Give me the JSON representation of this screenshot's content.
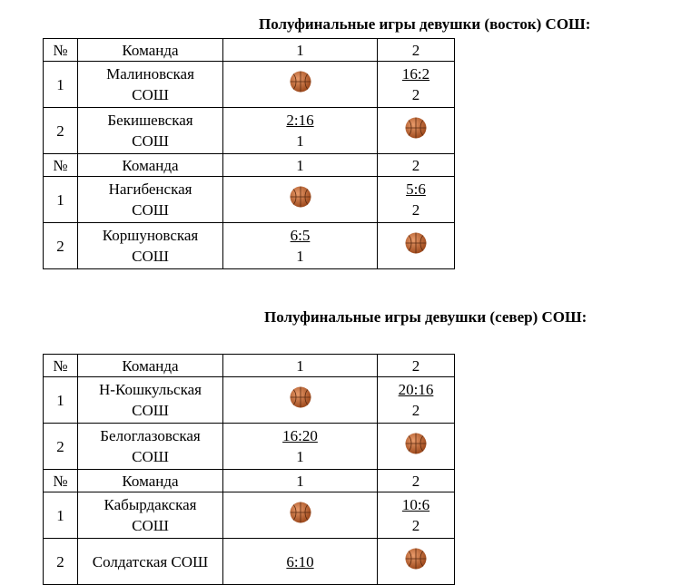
{
  "sections": [
    {
      "title": "Полуфинальные игры девушки (восток) СОШ:",
      "table": {
        "rows": [
          [
            "№",
            "Команда",
            "1",
            "2"
          ],
          [
            "1",
            "Малиновская\nСОШ",
            null,
            {
              "score": "16:2",
              "place": "2"
            }
          ],
          [
            "2",
            "Бекишевская\nСОШ",
            {
              "score": "2:16",
              "place": "1"
            },
            null
          ],
          [
            "№",
            "Команда",
            "1",
            "2"
          ],
          [
            "1",
            "Нагибенская\nСОШ",
            null,
            {
              "score": "5:6",
              "place": "2"
            }
          ],
          [
            "2",
            "Коршуновская\nСОШ",
            {
              "score": "6:5",
              "place": "1"
            },
            null
          ]
        ]
      }
    },
    {
      "title": "Полуфинальные игры девушки (север) СОШ:",
      "table": {
        "rows": [
          [
            "№",
            "Команда",
            "1",
            "2"
          ],
          [
            "1",
            "Н-Кошкульская\nСОШ",
            null,
            {
              "score": "20:16",
              "place": "2"
            }
          ],
          [
            "2",
            "Белоглазовская\nСОШ",
            {
              "score": "16:20",
              "place": "1"
            },
            null
          ],
          [
            "№",
            "Команда",
            "1",
            "2"
          ],
          [
            "1",
            "Кабырдакская\nСОШ",
            null,
            {
              "score": "10:6",
              "place": "2"
            }
          ],
          [
            "2",
            "Солдатская СОШ",
            {
              "score": "6:10"
            },
            null
          ]
        ]
      }
    }
  ]
}
